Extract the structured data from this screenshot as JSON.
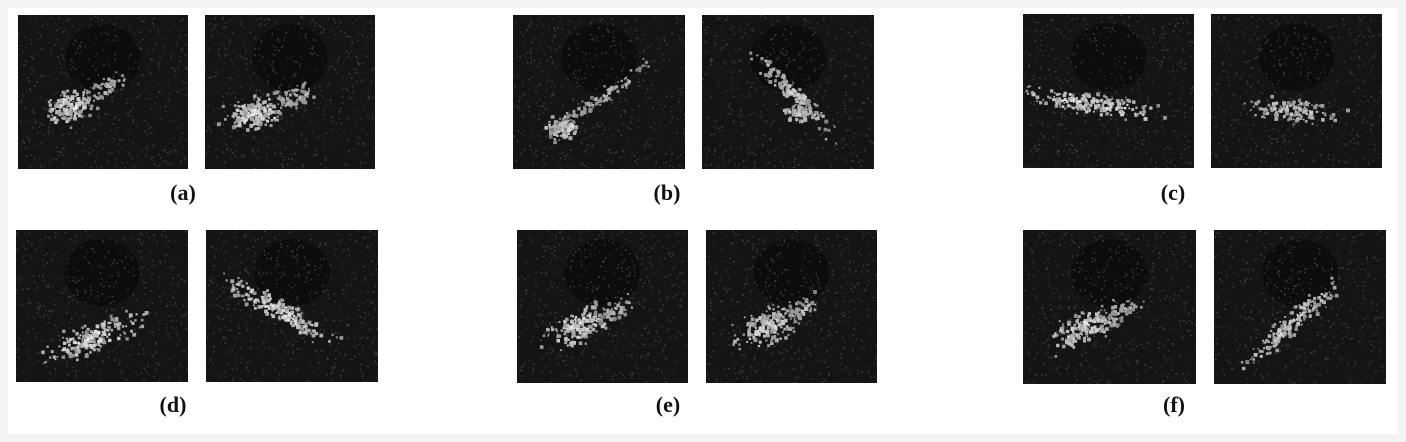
{
  "figure": {
    "panels": [
      {
        "id": "a",
        "caption": "(a)",
        "images": [
          {
            "target": "cluster-left"
          },
          {
            "target": "cluster-blob"
          }
        ]
      },
      {
        "id": "b",
        "caption": "(b)",
        "images": [
          {
            "target": "streak-bright"
          },
          {
            "target": "streak-diagonal"
          }
        ]
      },
      {
        "id": "c",
        "caption": "(c)",
        "images": [
          {
            "target": "horizontal-bright"
          },
          {
            "target": "horizontal-small"
          }
        ]
      },
      {
        "id": "d",
        "caption": "(d)",
        "images": [
          {
            "target": "ellipse-low"
          },
          {
            "target": "diagonal-down"
          }
        ]
      },
      {
        "id": "e",
        "caption": "(e)",
        "images": [
          {
            "target": "cluster-grid"
          },
          {
            "target": "cluster-grid"
          }
        ]
      },
      {
        "id": "f",
        "caption": "(f)",
        "images": [
          {
            "target": "cluster-grid"
          },
          {
            "target": "diagonal-up"
          }
        ]
      }
    ]
  }
}
